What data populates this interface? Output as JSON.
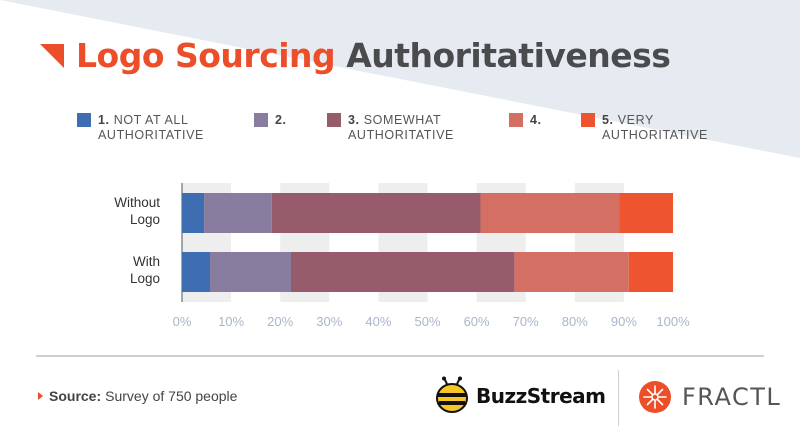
{
  "title": {
    "part1": "Logo Sourcing",
    "part2": "Authoritativeness"
  },
  "legend": [
    {
      "num": "1.",
      "text": "NOT AT ALL",
      "text2": "AUTHORITATIVE",
      "color": "#3f6db1"
    },
    {
      "num": "2.",
      "text": "",
      "text2": "",
      "color": "#887d9f"
    },
    {
      "num": "3.",
      "text": "SOMEWHAT",
      "text2": "AUTHORITATIVE",
      "color": "#965c6b"
    },
    {
      "num": "4.",
      "text": "",
      "text2": "",
      "color": "#d47063"
    },
    {
      "num": "5.",
      "text": "VERY",
      "text2": "AUTHORITATIVE",
      "color": "#ee5430"
    }
  ],
  "chart_data": {
    "type": "bar",
    "orientation": "horizontal",
    "stacked": true,
    "categories": [
      "Without Logo",
      "With Logo"
    ],
    "category_lines": [
      [
        "Without",
        "Logo"
      ],
      [
        "With",
        "Logo"
      ]
    ],
    "series": [
      {
        "name": "1. NOT AT ALL AUTHORITATIVE",
        "values": [
          4.5,
          5.7
        ],
        "color": "#3f6db1"
      },
      {
        "name": "2.",
        "values": [
          13.8,
          16.5
        ],
        "color": "#887d9f"
      },
      {
        "name": "3. SOMEWHAT AUTHORITATIVE",
        "values": [
          42.5,
          45.5
        ],
        "color": "#965c6b"
      },
      {
        "name": "4.",
        "values": [
          28.3,
          23.3
        ],
        "color": "#d47063"
      },
      {
        "name": "5. VERY AUTHORITATIVE",
        "values": [
          10.9,
          9.0
        ],
        "color": "#ee5430"
      }
    ],
    "xlim": [
      0,
      100
    ],
    "xticks": [
      "0%",
      "10%",
      "20%",
      "30%",
      "40%",
      "50%",
      "60%",
      "70%",
      "80%",
      "90%",
      "100%"
    ],
    "grid": "alternating vertical bands",
    "legend_position": "top"
  },
  "footer": {
    "source_label": "Source:",
    "source_text": "Survey of 750 people"
  },
  "logos": {
    "buzzstream": "BuzzStream",
    "fractl": "FRACTL"
  }
}
